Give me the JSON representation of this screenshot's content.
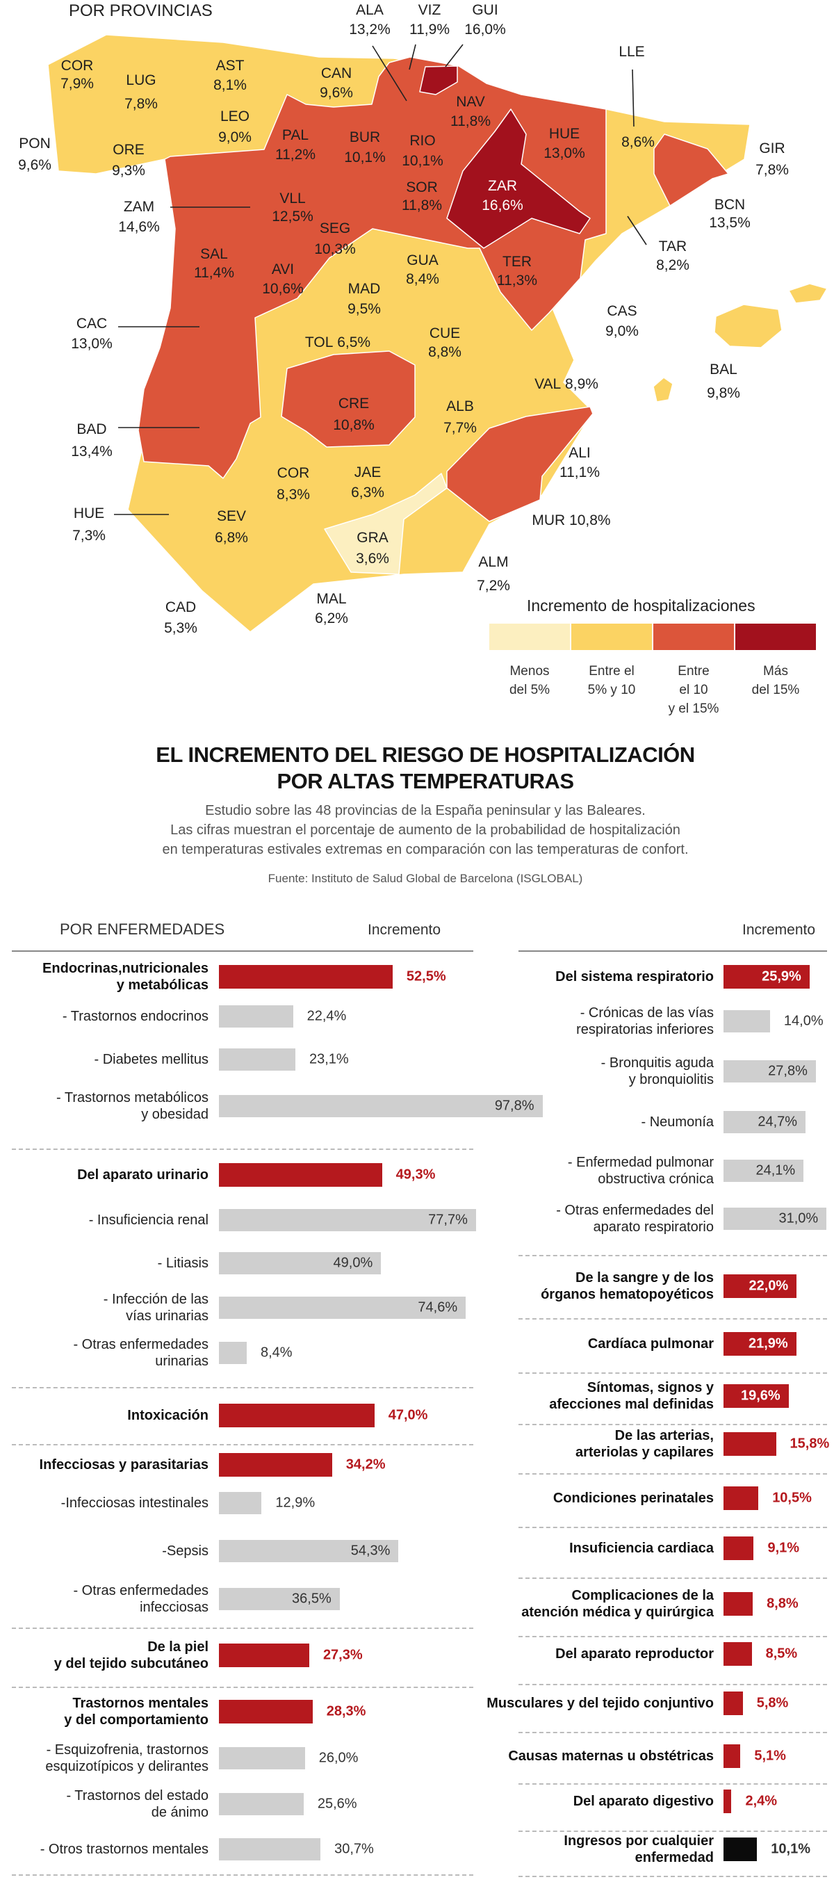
{
  "map": {
    "heading": "POR PROVINCIAS",
    "colors": {
      "pale": "#fcefc0",
      "yellow": "#fbd363",
      "red": "#dc553a",
      "dark": "#a2111d"
    },
    "provinces": [
      {
        "name": "ALA",
        "value": "13,2%"
      },
      {
        "name": "VIZ",
        "value": "11,9%"
      },
      {
        "name": "GUI",
        "value": "16,0%"
      },
      {
        "name": "LLE",
        "value": "8,6%"
      },
      {
        "name": "COR",
        "value": "7,9%"
      },
      {
        "name": "LUG",
        "value": "7,8%"
      },
      {
        "name": "AST",
        "value": "8,1%"
      },
      {
        "name": "CAN",
        "value": "9,6%"
      },
      {
        "name": "NAV",
        "value": "11,8%"
      },
      {
        "name": "LEO",
        "value": "9,0%"
      },
      {
        "name": "PAL",
        "value": "11,2%"
      },
      {
        "name": "BUR",
        "value": "10,1%"
      },
      {
        "name": "RIO",
        "value": "10,1%"
      },
      {
        "name": "HUE",
        "value": "13,0%"
      },
      {
        "name": "PON",
        "value": "9,6%"
      },
      {
        "name": "ORE",
        "value": "9,3%"
      },
      {
        "name": "GIR",
        "value": "7,8%"
      },
      {
        "name": "ZAR",
        "value": "16,6%"
      },
      {
        "name": "SOR",
        "value": "11,8%"
      },
      {
        "name": "VLL",
        "value": "12,5%"
      },
      {
        "name": "ZAM",
        "value": "14,6%"
      },
      {
        "name": "BCN",
        "value": "13,5%"
      },
      {
        "name": "SEG",
        "value": "10,3%"
      },
      {
        "name": "TAR",
        "value": "8,2%"
      },
      {
        "name": "SAL",
        "value": "11,4%"
      },
      {
        "name": "GUA",
        "value": "8,4%"
      },
      {
        "name": "TER",
        "value": "11,3%"
      },
      {
        "name": "AVI",
        "value": "10,6%"
      },
      {
        "name": "MAD",
        "value": "9,5%"
      },
      {
        "name": "CAS",
        "value": "9,0%"
      },
      {
        "name": "CAC",
        "value": "13,0%"
      },
      {
        "name": "TOL",
        "value": "6,5%"
      },
      {
        "name": "CUE",
        "value": "8,8%"
      },
      {
        "name": "BAL",
        "value": "9,8%"
      },
      {
        "name": "VAL",
        "value": "8,9%"
      },
      {
        "name": "CRE",
        "value": "10,8%"
      },
      {
        "name": "ALB",
        "value": "7,7%"
      },
      {
        "name": "BAD",
        "value": "13,4%"
      },
      {
        "name": "ALI",
        "value": "11,1%"
      },
      {
        "name": "COR",
        "value": "8,3%"
      },
      {
        "name": "JAE",
        "value": "6,3%"
      },
      {
        "name": "HUE",
        "value": "7,3%"
      },
      {
        "name": "SEV",
        "value": "6,8%"
      },
      {
        "name": "MUR",
        "value": "10,8%"
      },
      {
        "name": "GRA",
        "value": "3,6%"
      },
      {
        "name": "ALM",
        "value": "7,2%"
      },
      {
        "name": "MAL",
        "value": "6,2%"
      },
      {
        "name": "CAD",
        "value": "5,3%"
      }
    ],
    "legend": {
      "title": "Incremento de hospitalizaciones",
      "items": [
        {
          "label": "Menos\ndel 5%",
          "color": "#fcefc0"
        },
        {
          "label": "Entre el\n5% y 10",
          "color": "#fbd363"
        },
        {
          "label": "Entre\nel 10\ny el 15%",
          "color": "#dc553a"
        },
        {
          "label": "Más\ndel 15%",
          "color": "#a2111d"
        }
      ]
    }
  },
  "header": {
    "title_line1": "EL INCREMENTO DEL RIESGO DE HOSPITALIZACIÓN",
    "title_line2": "POR ALTAS TEMPERATURAS",
    "subtitle": "Estudio sobre las 48 provincias de la España peninsular y las Baleares.\nLas cifras muestran el porcentaje de aumento de la probabilidad de hospitalización\nen temperaturas estivales extremas en comparación con las temperaturas de confort.",
    "source": "Fuente: Instituto de Salud Global de Barcelona (ISGLOBAL)"
  },
  "chart_data": {
    "type": "bar",
    "orientation": "horizontal",
    "heading": "POR ENFERMEDADES",
    "value_header_left": "Incremento",
    "value_header_right": "Incremento",
    "colors": {
      "main": "#b5191e",
      "sub": "#cfcfcf",
      "total": "#0b0b0b"
    },
    "left": [
      {
        "label": "Endocrinas,nutricionales\ny metabólicas",
        "value": 52.5,
        "text": "52,5%",
        "kind": "main"
      },
      {
        "label": "- Trastornos endocrinos",
        "value": 22.4,
        "text": "22,4%",
        "kind": "sub"
      },
      {
        "label": "- Diabetes mellitus",
        "value": 23.1,
        "text": "23,1%",
        "kind": "sub"
      },
      {
        "label": "- Trastornos metabólicos\ny obesidad",
        "value": 97.8,
        "text": "97,8%",
        "kind": "sub"
      },
      {
        "label": "Del aparato urinario",
        "value": 49.3,
        "text": "49,3%",
        "kind": "main"
      },
      {
        "label": "- Insuficiencia renal",
        "value": 77.7,
        "text": "77,7%",
        "kind": "sub"
      },
      {
        "label": "- Litiasis",
        "value": 49.0,
        "text": "49,0%",
        "kind": "sub"
      },
      {
        "label": "- Infección de las\nvías urinarias",
        "value": 74.6,
        "text": "74,6%",
        "kind": "sub"
      },
      {
        "label": "- Otras enfermedades\nurinarias",
        "value": 8.4,
        "text": "8,4%",
        "kind": "sub"
      },
      {
        "label": "Intoxicación",
        "value": 47.0,
        "text": "47,0%",
        "kind": "main"
      },
      {
        "label": "Infecciosas y parasitarias",
        "value": 34.2,
        "text": "34,2%",
        "kind": "main"
      },
      {
        "label": "-Infecciosas intestinales",
        "value": 12.9,
        "text": "12,9%",
        "kind": "sub"
      },
      {
        "label": "-Sepsis",
        "value": 54.3,
        "text": "54,3%",
        "kind": "sub"
      },
      {
        "label": "- Otras enfermedades\ninfecciosas",
        "value": 36.5,
        "text": "36,5%",
        "kind": "sub"
      },
      {
        "label": "De la piel\ny del tejido subcutáneo",
        "value": 27.3,
        "text": "27,3%",
        "kind": "main"
      },
      {
        "label": "Trastornos mentales\ny del comportamiento",
        "value": 28.3,
        "text": "28,3%",
        "kind": "main"
      },
      {
        "label": "- Esquizofrenia, trastornos\nesquizotípicos y delirantes",
        "value": 26.0,
        "text": "26,0%",
        "kind": "sub"
      },
      {
        "label": "- Trastornos del estado\nde ánimo",
        "value": 25.6,
        "text": "25,6%",
        "kind": "sub"
      },
      {
        "label": "- Otros trastornos mentales",
        "value": 30.7,
        "text": "30,7%",
        "kind": "sub"
      }
    ],
    "right": [
      {
        "label": "Del sistema respiratorio",
        "value": 25.9,
        "text": "25,9%",
        "kind": "main"
      },
      {
        "label": "- Crónicas de las vías\nrespiratorias inferiores",
        "value": 14.0,
        "text": "14,0%",
        "kind": "sub"
      },
      {
        "label": "- Bronquitis aguda\ny bronquiolitis",
        "value": 27.8,
        "text": "27,8%",
        "kind": "sub"
      },
      {
        "label": "- Neumonía",
        "value": 24.7,
        "text": "24,7%",
        "kind": "sub"
      },
      {
        "label": "- Enfermedad pulmonar\nobstructiva crónica",
        "value": 24.1,
        "text": "24,1%",
        "kind": "sub"
      },
      {
        "label": "- Otras enfermedades del\naparato respiratorio",
        "value": 31.0,
        "text": "31,0%",
        "kind": "sub"
      },
      {
        "label": "De la sangre y de los\nórganos hematopoyéticos",
        "value": 22.0,
        "text": "22,0%",
        "kind": "main"
      },
      {
        "label": "Cardíaca pulmonar",
        "value": 21.9,
        "text": "21,9%",
        "kind": "main"
      },
      {
        "label": "Síntomas, signos y\nafecciones mal definidas",
        "value": 19.6,
        "text": "19,6%",
        "kind": "main"
      },
      {
        "label": "De las arterias,\narteriolas y capilares",
        "value": 15.8,
        "text": "15,8%",
        "kind": "main"
      },
      {
        "label": "Condiciones perinatales",
        "value": 10.5,
        "text": "10,5%",
        "kind": "main"
      },
      {
        "label": "Insuficiencia cardiaca",
        "value": 9.1,
        "text": "9,1%",
        "kind": "main"
      },
      {
        "label": "Complicaciones de la\natención médica y quirúrgica",
        "value": 8.8,
        "text": "8,8%",
        "kind": "main"
      },
      {
        "label": "Del aparato reproductor",
        "value": 8.5,
        "text": "8,5%",
        "kind": "main"
      },
      {
        "label": "Musculares y del tejido conjuntivo",
        "value": 5.8,
        "text": "5,8%",
        "kind": "main"
      },
      {
        "label": "Causas maternas u obstétricas",
        "value": 5.1,
        "text": "5,1%",
        "kind": "main"
      },
      {
        "label": "Del  aparato digestivo",
        "value": 2.4,
        "text": "2,4%",
        "kind": "main"
      },
      {
        "label": "Ingresos por cualquier\nenfermedad",
        "value": 10.1,
        "text": "10,1%",
        "kind": "total"
      }
    ]
  }
}
